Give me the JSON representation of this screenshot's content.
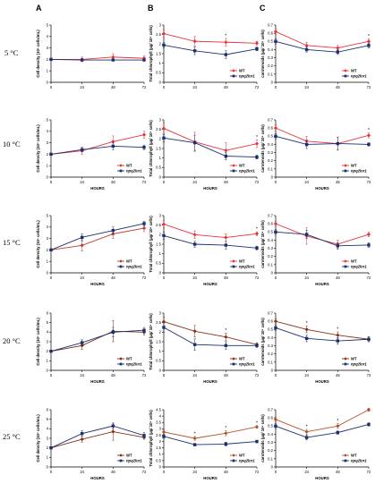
{
  "figure": {
    "columns": [
      "A",
      "B",
      "C"
    ],
    "rows": [
      "5 °C",
      "10 °C",
      "15 °C",
      "20 °C",
      "25 °C"
    ]
  },
  "chart_data": [
    {
      "type": "line",
      "row": 0,
      "col": 0,
      "xlabel": "",
      "ylabel": "Cell density (10⁶ cells/mL)",
      "x": [
        0,
        24,
        48,
        72
      ],
      "ylim": [
        0,
        5
      ],
      "yticks": [
        0,
        1,
        2,
        3,
        4,
        5
      ],
      "legend": false,
      "series": [
        {
          "name": "WT",
          "color": "#e8313a",
          "marker": "diamond",
          "values": [
            2.0,
            2.0,
            2.2,
            2.1
          ],
          "err": [
            0.1,
            0.2,
            0.3,
            0.2
          ]
        },
        {
          "name": "npq2lor1",
          "color": "#1a2f6e",
          "marker": "square",
          "values": [
            2.0,
            1.95,
            1.95,
            1.95
          ],
          "err": [
            0.1,
            0.1,
            0.1,
            0.1
          ]
        }
      ]
    },
    {
      "type": "line",
      "row": 0,
      "col": 1,
      "xlabel": "",
      "ylabel": "Total chlorophyll (µg/ 10⁶ cells)",
      "x": [
        0,
        24,
        48,
        72
      ],
      "ylim": [
        0,
        3
      ],
      "yticks": [
        0,
        0.5,
        1,
        1.5,
        2,
        2.5,
        3
      ],
      "legend": true,
      "legend_pos": "bottom-right",
      "series": [
        {
          "name": "WT",
          "color": "#e8313a",
          "marker": "diamond",
          "values": [
            2.55,
            2.15,
            2.1,
            2.05
          ],
          "err": [
            0.2,
            0.25,
            0.2,
            0.1
          ]
        },
        {
          "name": "npq2lor1",
          "color": "#1a2f6e",
          "marker": "square",
          "values": [
            1.95,
            1.65,
            1.45,
            1.75
          ],
          "err": [
            0.15,
            0.2,
            0.2,
            0.1
          ]
        }
      ],
      "annotations": [
        {
          "x": 48,
          "text": "*"
        }
      ]
    },
    {
      "type": "line",
      "row": 0,
      "col": 2,
      "xlabel": "",
      "ylabel": "carotenoids (µg/ 10⁶ cells)",
      "x": [
        0,
        24,
        48,
        72
      ],
      "ylim": [
        0,
        0.7
      ],
      "yticks": [
        0,
        0.1,
        0.2,
        0.3,
        0.4,
        0.5,
        0.6,
        0.7
      ],
      "legend": true,
      "legend_pos": "bottom-right",
      "series": [
        {
          "name": "WT",
          "color": "#e8313a",
          "marker": "diamond",
          "values": [
            0.62,
            0.45,
            0.42,
            0.5
          ],
          "err": [
            0.03,
            0.04,
            0.03,
            0.03
          ]
        },
        {
          "name": "npq2lor1",
          "color": "#1a2f6e",
          "marker": "square",
          "values": [
            0.5,
            0.4,
            0.37,
            0.45
          ],
          "err": [
            0.03,
            0.03,
            0.03,
            0.03
          ]
        }
      ],
      "annotations": [
        {
          "x": 72,
          "text": "*"
        }
      ]
    },
    {
      "type": "line",
      "row": 1,
      "col": 0,
      "xlabel": "HOURS",
      "ylabel": "Cell density (10⁶ cells/mL)",
      "x": [
        0,
        24,
        48,
        72
      ],
      "ylim": [
        0,
        5
      ],
      "yticks": [
        0,
        1,
        2,
        3,
        4,
        5
      ],
      "legend": true,
      "legend_pos": "bottom-right",
      "series": [
        {
          "name": "WT",
          "color": "#e8313a",
          "marker": "diamond",
          "values": [
            2.0,
            2.3,
            3.1,
            3.7
          ],
          "err": [
            0.1,
            0.3,
            0.5,
            0.3
          ]
        },
        {
          "name": "npq2lor1",
          "color": "#1a2f6e",
          "marker": "square",
          "values": [
            2.0,
            2.4,
            2.7,
            2.6
          ],
          "err": [
            0.1,
            0.2,
            0.3,
            0.2
          ]
        }
      ]
    },
    {
      "type": "line",
      "row": 1,
      "col": 1,
      "xlabel": "HOURS",
      "ylabel": "Total chlorophyll (µg/ 10⁶ cells)",
      "x": [
        0,
        24,
        48,
        72
      ],
      "ylim": [
        0,
        3
      ],
      "yticks": [
        0,
        0.5,
        1,
        1.5,
        2,
        2.5,
        3
      ],
      "legend": true,
      "legend_pos": "bottom-right",
      "series": [
        {
          "name": "WT",
          "color": "#e8313a",
          "marker": "diamond",
          "values": [
            2.55,
            1.85,
            1.4,
            1.75
          ],
          "err": [
            0.3,
            0.5,
            0.4,
            0.2
          ]
        },
        {
          "name": "npq2lor1",
          "color": "#1a2f6e",
          "marker": "square",
          "values": [
            2.05,
            1.8,
            1.1,
            1.05
          ],
          "err": [
            0.2,
            0.4,
            0.2,
            0.1
          ]
        }
      ],
      "annotations": [
        {
          "x": 72,
          "text": "*"
        }
      ]
    },
    {
      "type": "line",
      "row": 1,
      "col": 2,
      "xlabel": "HOURS",
      "ylabel": "carotenoids (µg/ 10⁶ cells)",
      "x": [
        0,
        24,
        48,
        72
      ],
      "ylim": [
        0,
        0.7
      ],
      "yticks": [
        0,
        0.1,
        0.2,
        0.3,
        0.4,
        0.5,
        0.6,
        0.7
      ],
      "legend": true,
      "legend_pos": "bottom-right",
      "series": [
        {
          "name": "WT",
          "color": "#e8313a",
          "marker": "diamond",
          "values": [
            0.6,
            0.44,
            0.41,
            0.51
          ],
          "err": [
            0.04,
            0.06,
            0.08,
            0.03
          ]
        },
        {
          "name": "npq2lor1",
          "color": "#1a2f6e",
          "marker": "square",
          "values": [
            0.5,
            0.4,
            0.41,
            0.4
          ],
          "err": [
            0.03,
            0.05,
            0.08,
            0.02
          ]
        }
      ],
      "annotations": [
        {
          "x": 72,
          "text": "*"
        }
      ]
    },
    {
      "type": "line",
      "row": 2,
      "col": 0,
      "xlabel": "HOURS",
      "ylabel": "Cell density (10⁶ cells/mL)",
      "x": [
        0,
        24,
        48,
        72
      ],
      "ylim": [
        0,
        5
      ],
      "yticks": [
        0,
        1,
        2,
        3,
        4,
        5
      ],
      "legend": true,
      "legend_pos": "bottom-right",
      "series": [
        {
          "name": "WT",
          "color": "#c0392b",
          "marker": "diamond",
          "values": [
            2.0,
            2.4,
            3.4,
            3.9
          ],
          "err": [
            0.1,
            0.5,
            0.4,
            0.3
          ]
        },
        {
          "name": "npq2lor1",
          "color": "#1a2f6e",
          "marker": "square",
          "values": [
            2.0,
            3.1,
            3.7,
            4.3
          ],
          "err": [
            0.1,
            0.3,
            0.3,
            0.2
          ]
        }
      ]
    },
    {
      "type": "line",
      "row": 2,
      "col": 1,
      "xlabel": "HOURS",
      "ylabel": "Total chlorophyll (µg/ 10⁶ cells)",
      "x": [
        0,
        24,
        48,
        72
      ],
      "ylim": [
        0,
        3
      ],
      "yticks": [
        0,
        0.5,
        1,
        1.5,
        2,
        2.5,
        3
      ],
      "legend": true,
      "legend_pos": "bottom-right",
      "series": [
        {
          "name": "WT",
          "color": "#e8313a",
          "marker": "diamond",
          "values": [
            2.55,
            2.0,
            1.85,
            2.05
          ],
          "err": [
            0.2,
            0.2,
            0.2,
            0.1
          ]
        },
        {
          "name": "npq2lor1",
          "color": "#1a2f6e",
          "marker": "square",
          "values": [
            1.95,
            1.5,
            1.45,
            1.3
          ],
          "err": [
            0.2,
            0.15,
            0.2,
            0.1
          ]
        }
      ],
      "annotations": [
        {
          "x": 72,
          "text": "*"
        }
      ]
    },
    {
      "type": "line",
      "row": 2,
      "col": 2,
      "xlabel": "HOURS",
      "ylabel": "carotenoids (µg/ 10⁶ cells)",
      "x": [
        0,
        24,
        48,
        72
      ],
      "ylim": [
        0,
        0.7
      ],
      "yticks": [
        0,
        0.1,
        0.2,
        0.3,
        0.4,
        0.5,
        0.6,
        0.7
      ],
      "legend": true,
      "legend_pos": "bottom-right",
      "series": [
        {
          "name": "WT",
          "color": "#e8313a",
          "marker": "diamond",
          "values": [
            0.6,
            0.45,
            0.35,
            0.47
          ],
          "err": [
            0.03,
            0.1,
            0.05,
            0.03
          ]
        },
        {
          "name": "npq2lor1",
          "color": "#1a2f6e",
          "marker": "square",
          "values": [
            0.5,
            0.47,
            0.33,
            0.34
          ],
          "err": [
            0.03,
            0.05,
            0.04,
            0.03
          ]
        }
      ]
    },
    {
      "type": "line",
      "row": 3,
      "col": 0,
      "xlabel": "HOURS",
      "ylabel": "Cell density (10⁶ cells/mL)",
      "x": [
        0,
        24,
        48,
        72
      ],
      "ylim": [
        0,
        6
      ],
      "yticks": [
        0,
        1,
        2,
        3,
        4,
        5,
        6
      ],
      "legend": true,
      "legend_pos": "bottom-right",
      "series": [
        {
          "name": "WT",
          "color": "#7a2a1a",
          "marker": "diamond",
          "values": [
            2.0,
            2.6,
            4.1,
            4.0
          ],
          "err": [
            0.1,
            0.4,
            1.1,
            0.3
          ]
        },
        {
          "name": "npq2lor1",
          "color": "#1a2f6e",
          "marker": "square",
          "values": [
            2.0,
            2.9,
            4.0,
            4.2
          ],
          "err": [
            0.1,
            0.3,
            0.5,
            0.3
          ]
        }
      ]
    },
    {
      "type": "line",
      "row": 3,
      "col": 1,
      "xlabel": "HOURS",
      "ylabel": "Total chlorophyll (µg/ 10⁶ cells)",
      "x": [
        0,
        24,
        48,
        72
      ],
      "ylim": [
        0,
        3
      ],
      "yticks": [
        0,
        0.5,
        1,
        1.5,
        2,
        2.5,
        3
      ],
      "legend": true,
      "legend_pos": "bottom-right",
      "series": [
        {
          "name": "WT",
          "color": "#8b2e16",
          "marker": "diamond",
          "values": [
            2.55,
            2.05,
            1.75,
            1.35
          ],
          "err": [
            0.25,
            0.3,
            0.2,
            0.1
          ]
        },
        {
          "name": "npq2lor1",
          "color": "#1a2f6e",
          "marker": "square",
          "values": [
            2.25,
            1.35,
            1.3,
            1.3
          ],
          "err": [
            0.25,
            0.3,
            0.2,
            0.1
          ]
        }
      ],
      "annotations": [
        {
          "x": 48,
          "text": "*"
        }
      ]
    },
    {
      "type": "line",
      "row": 3,
      "col": 2,
      "xlabel": "HOURS",
      "ylabel": "carotenoids (µg/ 10⁶ cells)",
      "x": [
        0,
        24,
        48,
        72
      ],
      "ylim": [
        0,
        0.7
      ],
      "yticks": [
        0,
        0.1,
        0.2,
        0.3,
        0.4,
        0.5,
        0.6,
        0.7
      ],
      "legend": true,
      "legend_pos": "bottom-right",
      "series": [
        {
          "name": "WT",
          "color": "#8b2e16",
          "marker": "diamond",
          "values": [
            0.6,
            0.5,
            0.43,
            0.38
          ],
          "err": [
            0.03,
            0.04,
            0.04,
            0.03
          ]
        },
        {
          "name": "npq2lor1",
          "color": "#1a2f6e",
          "marker": "square",
          "values": [
            0.52,
            0.39,
            0.36,
            0.38
          ],
          "err": [
            0.03,
            0.04,
            0.04,
            0.03
          ]
        }
      ],
      "annotations": [
        {
          "x": 24,
          "text": "*"
        },
        {
          "x": 48,
          "text": "*"
        }
      ]
    },
    {
      "type": "line",
      "row": 4,
      "col": 0,
      "xlabel": "HOURS",
      "ylabel": "Cell density (10⁶ cells/mL)",
      "x": [
        0,
        24,
        48,
        72
      ],
      "ylim": [
        0,
        6
      ],
      "yticks": [
        0,
        1,
        2,
        3,
        4,
        5,
        6
      ],
      "legend": true,
      "legend_pos": "bottom-right",
      "series": [
        {
          "name": "WT",
          "color": "#8b2e16",
          "marker": "diamond",
          "values": [
            2.0,
            2.9,
            3.7,
            3.1
          ],
          "err": [
            0.1,
            0.3,
            0.9,
            0.2
          ]
        },
        {
          "name": "npq2lor1",
          "color": "#1a2f6e",
          "marker": "square",
          "values": [
            2.0,
            3.5,
            4.3,
            3.3
          ],
          "err": [
            0.1,
            0.3,
            0.3,
            0.3
          ]
        }
      ]
    },
    {
      "type": "line",
      "row": 4,
      "col": 1,
      "xlabel": "HOURS",
      "ylabel": "Total chlorophyll (µg/ 10⁶ cells)",
      "x": [
        0,
        24,
        48,
        72
      ],
      "ylim": [
        0,
        4.5
      ],
      "yticks": [
        0,
        0.5,
        1,
        1.5,
        2,
        2.5,
        3,
        3.5,
        4,
        4.5
      ],
      "legend": true,
      "legend_pos": "bottom-right",
      "series": [
        {
          "name": "WT",
          "color": "#b5502a",
          "marker": "diamond",
          "values": [
            2.75,
            2.25,
            2.65,
            3.15
          ],
          "err": [
            0.15,
            0.15,
            0.2,
            0.1
          ]
        },
        {
          "name": "npq2lor1",
          "color": "#1a2f6e",
          "marker": "square",
          "values": [
            2.4,
            1.75,
            1.8,
            2.0
          ],
          "err": [
            0.15,
            0.1,
            0.15,
            0.1
          ]
        }
      ],
      "annotations": [
        {
          "x": 24,
          "text": "*"
        },
        {
          "x": 48,
          "text": "*"
        },
        {
          "x": 72,
          "text": "*"
        }
      ]
    },
    {
      "type": "line",
      "row": 4,
      "col": 2,
      "xlabel": "HOURS",
      "ylabel": "carotenoids (µg/ 10⁶ cells)",
      "x": [
        0,
        24,
        48,
        72
      ],
      "ylim": [
        0,
        0.7
      ],
      "yticks": [
        0,
        0.1,
        0.2,
        0.3,
        0.4,
        0.5,
        0.6,
        0.7
      ],
      "legend": true,
      "legend_pos": "bottom-right",
      "series": [
        {
          "name": "WT",
          "color": "#b5502a",
          "marker": "diamond",
          "values": [
            0.58,
            0.43,
            0.5,
            0.7
          ],
          "err": [
            0.03,
            0.03,
            0.03,
            0.02
          ]
        },
        {
          "name": "npq2lor1",
          "color": "#1a2f6e",
          "marker": "square",
          "values": [
            0.5,
            0.36,
            0.42,
            0.52
          ],
          "err": [
            0.03,
            0.03,
            0.02,
            0.02
          ]
        }
      ],
      "annotations": [
        {
          "x": 24,
          "text": "*"
        },
        {
          "x": 48,
          "text": "*"
        }
      ]
    }
  ]
}
